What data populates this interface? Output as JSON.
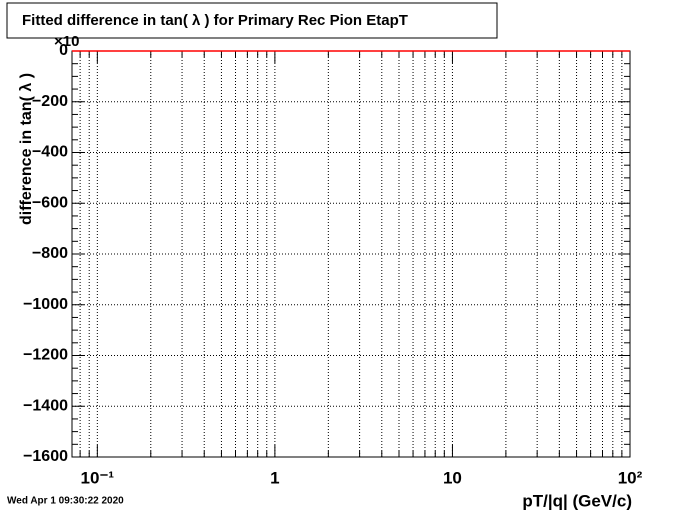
{
  "chart_data": {
    "type": "line",
    "title": "Fitted difference in tan( λ ) for Primary Rec Pion EtapT",
    "x_label": "pT/|q| (GeV/c)",
    "y_label": "difference in tan( λ )",
    "y_multiplier": "×10",
    "timestamp": "Wed Apr  1 09:30:22 2020",
    "x_log": true,
    "grid": true,
    "xlim": [
      0.072,
      100
    ],
    "ylim": [
      -1600,
      0
    ],
    "xticks": [
      {
        "value": 0.1,
        "label": "10⁻¹"
      },
      1,
      10,
      {
        "value": 100,
        "label": "10²"
      }
    ],
    "x_minor_ticks": [
      0.08,
      0.09,
      0.2,
      0.3,
      0.4,
      0.5,
      0.6,
      0.7,
      0.8,
      0.9,
      2,
      3,
      4,
      5,
      6,
      7,
      8,
      9,
      20,
      30,
      40,
      50,
      60,
      70,
      80,
      90
    ],
    "yticks": [
      0,
      {
        "value": -200,
        "label": "−200"
      },
      {
        "value": -400,
        "label": "−400"
      },
      {
        "value": -600,
        "label": "−600"
      },
      {
        "value": -800,
        "label": "−800"
      },
      {
        "value": -1000,
        "label": "−1000"
      },
      {
        "value": -1200,
        "label": "−1200"
      },
      {
        "value": -1400,
        "label": "−1400"
      },
      {
        "value": -1600,
        "label": "−1600"
      }
    ],
    "y_minor_ticks": [
      -50,
      -100,
      -150,
      -250,
      -300,
      -350,
      -450,
      -500,
      -550,
      -650,
      -700,
      -750,
      -850,
      -900,
      -950,
      -1050,
      -1100,
      -1150,
      -1250,
      -1300,
      -1350,
      -1450,
      -1500,
      -1550
    ],
    "x": [
      0.072,
      100
    ],
    "values": [
      0,
      0
    ],
    "color": "#ff0000"
  }
}
